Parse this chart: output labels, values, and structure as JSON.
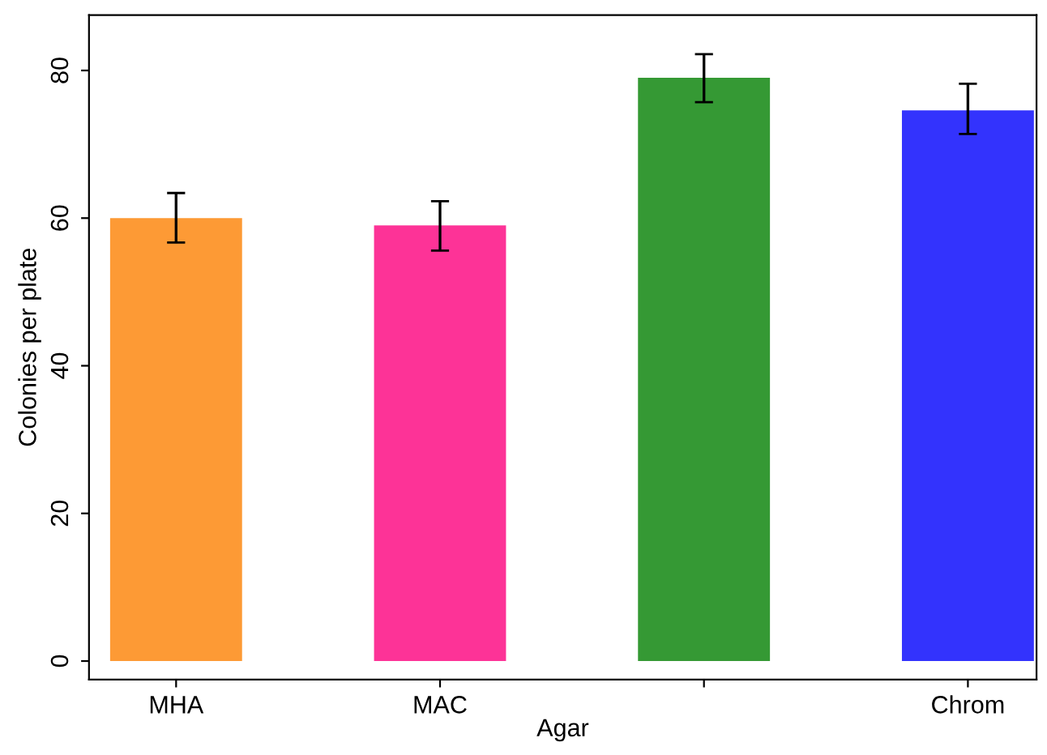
{
  "chart_data": {
    "type": "bar",
    "xlabel": "Agar",
    "ylabel": "Colonies per plate",
    "categories": [
      "MHA",
      "MAC",
      null,
      "Chrom"
    ],
    "values": [
      60.0,
      59.0,
      79.0,
      74.6
    ],
    "colors": [
      "#fd9a35",
      "#fd3397",
      "#359934",
      "#3333fd"
    ],
    "errors": [
      [
        56.7,
        63.4
      ],
      [
        55.6,
        62.3
      ],
      [
        75.7,
        82.2
      ],
      [
        71.4,
        78.2
      ]
    ],
    "ylim": [
      -2.5,
      87.5
    ],
    "yticks": [
      0,
      20,
      40,
      60,
      80
    ],
    "grid": false,
    "legend": false
  }
}
